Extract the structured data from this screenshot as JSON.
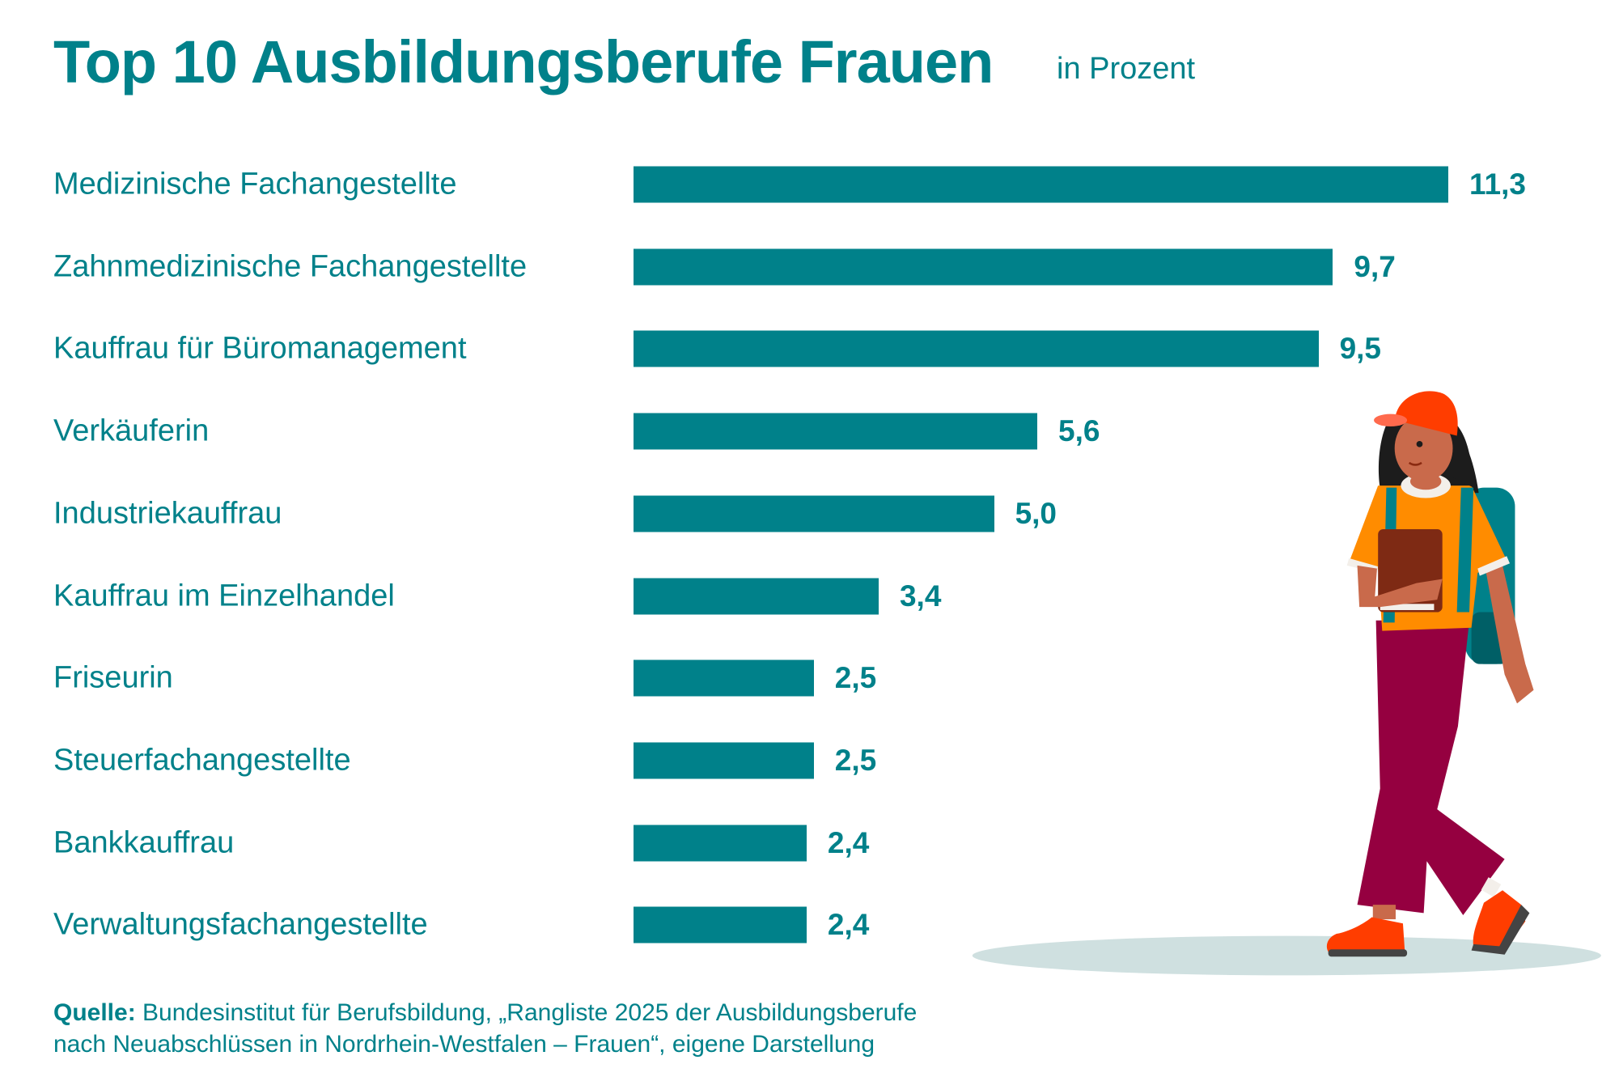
{
  "chart_data": {
    "type": "bar",
    "orientation": "horizontal",
    "title": "Top 10 Ausbildungsberufe Frauen",
    "subtitle": "in Prozent",
    "categories": [
      "Medizinische Fachangestellte",
      "Zahnmedizinische Fachangestellte",
      "Kauffrau für Büromanagement",
      "Verkäuferin",
      "Industriekauffrau",
      "Kauffrau im Einzelhandel",
      "Friseurin",
      "Steuerfachangestellte",
      "Bankkauffrau",
      "Verwaltungsfachangestellte"
    ],
    "values": [
      11.3,
      9.7,
      9.5,
      5.6,
      5.0,
      3.4,
      2.5,
      2.5,
      2.4,
      2.4
    ],
    "value_labels": [
      "11,3",
      "9,7",
      "9,5",
      "5,6",
      "5,0",
      "3,4",
      "2,5",
      "2,5",
      "2,4",
      "2,4"
    ],
    "xlim": [
      0,
      11.3
    ],
    "grid": false,
    "bar_color": "#00818A"
  },
  "source": {
    "label": "Quelle:",
    "line1": "Bundesinstitut für Berufsbildung, „Rangliste 2025 der Ausbildungsberufe",
    "line2": "nach Neuabschlüssen in Nordrhein-Westfalen – Frauen“, eigene Darstellung"
  },
  "colors": {
    "accent": "#00818A",
    "text": "#00818A"
  },
  "illustration": "walking-woman-with-cap-backpack-and-book"
}
